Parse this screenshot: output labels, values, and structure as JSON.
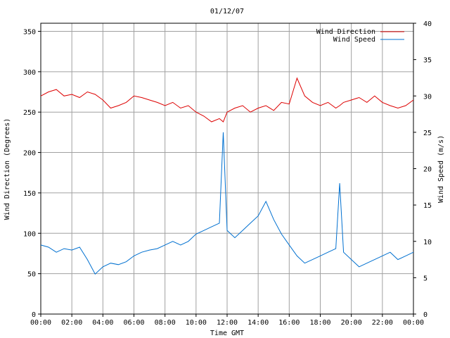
{
  "chart_data": {
    "type": "line",
    "title": "01/12/07",
    "xlabel": "Time GMT",
    "ylabel_left": "Wind Direction (Degrees)",
    "ylabel_right": "Wind Speed (m/s)",
    "x_ticks": [
      "00:00",
      "02:00",
      "04:00",
      "06:00",
      "08:00",
      "10:00",
      "12:00",
      "14:00",
      "16:00",
      "18:00",
      "20:00",
      "22:00",
      "00:00"
    ],
    "xlim_hours": [
      0,
      24
    ],
    "ylim_left": [
      0,
      360
    ],
    "ylim_right": [
      0,
      40
    ],
    "y_ticks_left": [
      0,
      50,
      100,
      150,
      200,
      250,
      300,
      350
    ],
    "y_ticks_right": [
      0,
      5,
      10,
      15,
      20,
      25,
      30,
      35,
      40
    ],
    "grid": true,
    "legend_position": "top-right",
    "x_hours": [
      0,
      0.5,
      1,
      1.5,
      2,
      2.5,
      3,
      3.5,
      4,
      4.5,
      5,
      5.5,
      6,
      6.5,
      7,
      7.5,
      8,
      8.5,
      9,
      9.5,
      10,
      10.5,
      11,
      11.5,
      11.75,
      12,
      12.5,
      13,
      13.5,
      14,
      14.5,
      15,
      15.5,
      16,
      16.5,
      17,
      17.5,
      18,
      18.5,
      19,
      19.25,
      19.5,
      20,
      20.5,
      21,
      21.5,
      22,
      22.5,
      23,
      23.5,
      24
    ],
    "series": [
      {
        "name": "Wind Direction",
        "color": "#dd0000",
        "axis": "left",
        "values": [
          270,
          275,
          278,
          270,
          272,
          268,
          275,
          272,
          265,
          255,
          258,
          262,
          270,
          268,
          265,
          262,
          258,
          262,
          255,
          258,
          250,
          245,
          238,
          242,
          238,
          250,
          255,
          258,
          250,
          255,
          258,
          252,
          262,
          260,
          292,
          270,
          262,
          258,
          262,
          255,
          258,
          262,
          265,
          268,
          262,
          270,
          262,
          258,
          255,
          258,
          265
        ]
      },
      {
        "name": "Wind Speed",
        "color": "#0070d0",
        "axis": "right",
        "values": [
          9.5,
          9.2,
          8.5,
          9.0,
          8.8,
          9.2,
          7.5,
          5.5,
          6.5,
          7.0,
          6.8,
          7.2,
          8.0,
          8.5,
          8.8,
          9.0,
          9.5,
          10.0,
          9.5,
          10.0,
          11.0,
          11.5,
          12.0,
          12.5,
          25.0,
          11.5,
          10.5,
          11.5,
          12.5,
          13.5,
          15.5,
          13.0,
          11.0,
          9.5,
          8.0,
          7.0,
          7.5,
          8.0,
          8.5,
          9.0,
          18.0,
          8.5,
          7.5,
          6.5,
          7.0,
          7.5,
          8.0,
          8.5,
          7.5,
          8.0,
          8.5
        ]
      }
    ]
  }
}
